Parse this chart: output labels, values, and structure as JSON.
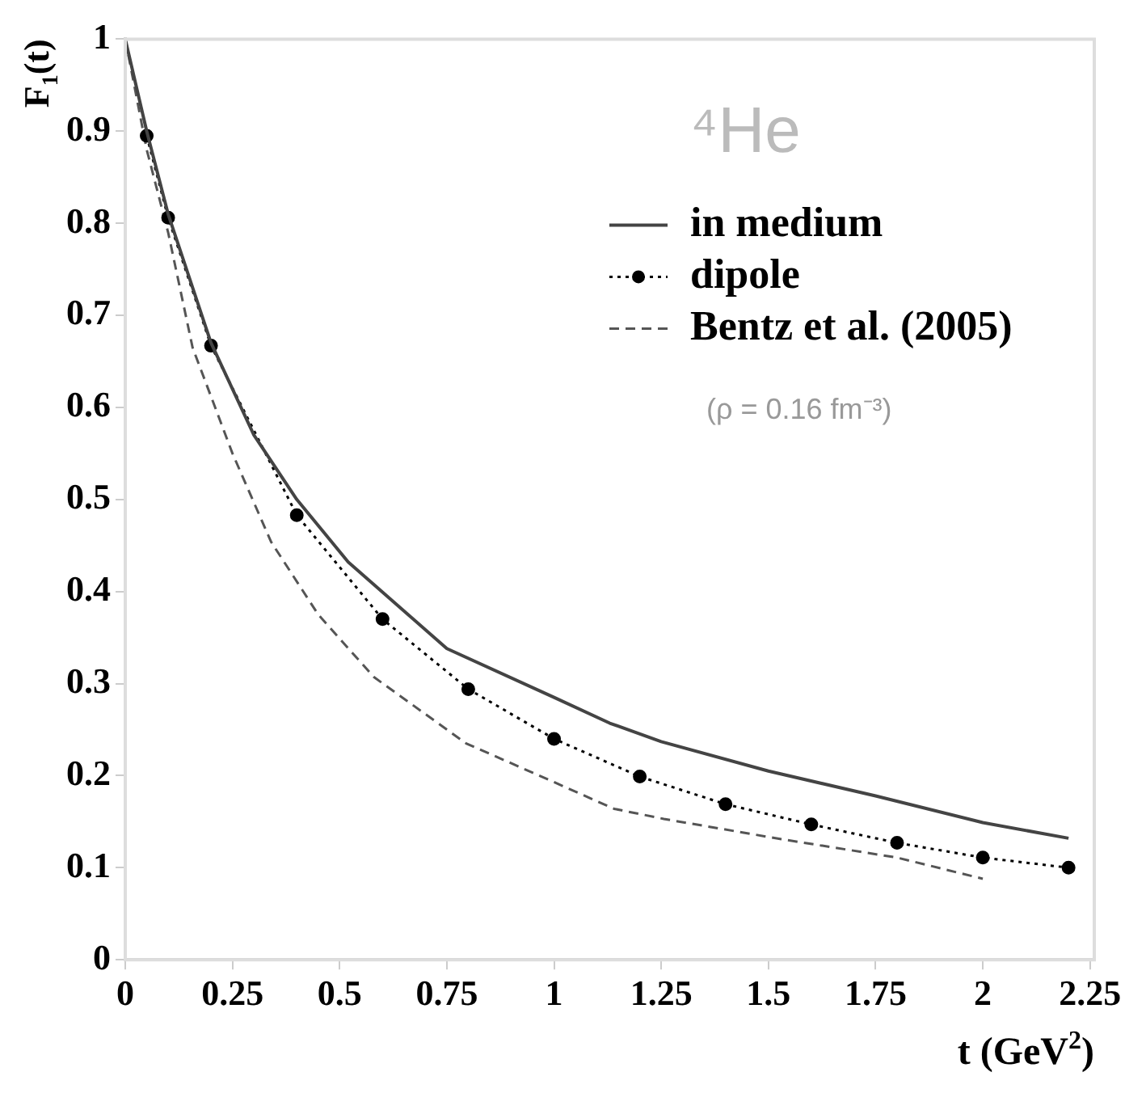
{
  "chart_data": {
    "type": "line",
    "xlabel": "t (GeV$^{2}$)",
    "ylabel": "F$_{1}$(t)",
    "xlim": [
      0,
      2.26
    ],
    "xticks": [
      0,
      0.25,
      0.5,
      0.75,
      1,
      1.25,
      1.5,
      1.75,
      2,
      2.25
    ],
    "ylim": [
      0,
      1
    ],
    "yticks": [
      0,
      0.1,
      0.2,
      0.3,
      0.4,
      0.5,
      0.6,
      0.7,
      0.8,
      0.9,
      1
    ],
    "grid": false,
    "legend": "top right",
    "annotations": [
      "⁴He",
      "(ρ = 0.16 fm⁻³)"
    ],
    "series": [
      {
        "name": "in medium",
        "color": "#444444",
        "line_style": "solid",
        "marker": "none",
        "x": [
          0,
          0.05,
          0.1,
          0.2,
          0.3,
          0.4,
          0.52,
          0.75,
          1,
          1.13,
          1.25,
          1.5,
          1.75,
          2,
          2.2
        ],
        "values": [
          1,
          0.9,
          0.81,
          0.67,
          0.57,
          0.5,
          0.432,
          0.338,
          0.285,
          0.257,
          0.237,
          0.205,
          0.178,
          0.149,
          0.132
        ]
      },
      {
        "name": "dipole",
        "color": "#000000",
        "line_style": "dotted",
        "marker": "circle",
        "x": [
          0.05,
          0.1,
          0.2,
          0.4,
          0.6,
          0.8,
          1,
          1.2,
          1.4,
          1.6,
          1.8,
          2,
          2.2
        ],
        "values": [
          0.895,
          0.806,
          0.667,
          0.483,
          0.37,
          0.294,
          0.24,
          0.199,
          0.169,
          0.147,
          0.127,
          0.111,
          0.1
        ]
      },
      {
        "name": "Bentz et al. (2005)",
        "color": "#555555",
        "line_style": "dashed",
        "marker": "none",
        "x": [
          0,
          0.05,
          0.1,
          0.157,
          0.25,
          0.34,
          0.45,
          0.58,
          0.795,
          1,
          1.14,
          1.256,
          1.53,
          1.8,
          2
        ],
        "values": [
          1,
          0.88,
          0.79,
          0.665,
          0.55,
          0.454,
          0.375,
          0.307,
          0.235,
          0.193,
          0.164,
          0.153,
          0.131,
          0.111,
          0.088
        ]
      }
    ]
  }
}
